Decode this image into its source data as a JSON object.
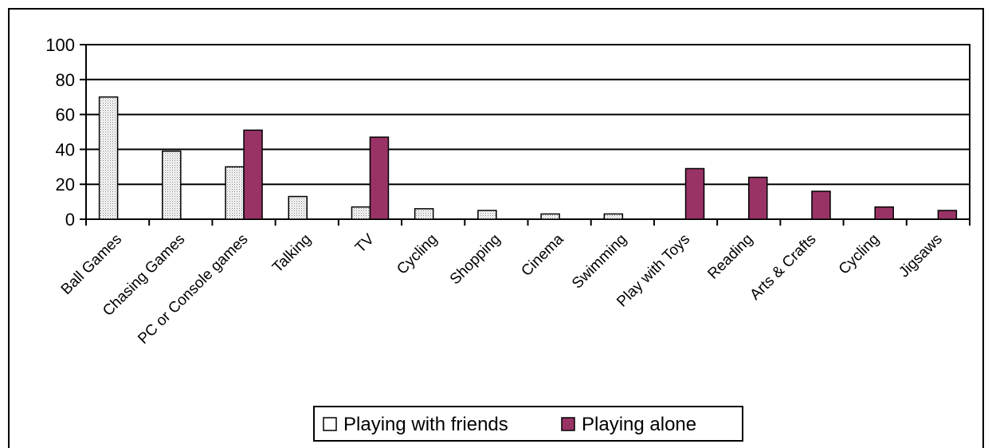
{
  "chart_data": {
    "type": "bar",
    "categories": [
      "Ball Games",
      "Chasing Games",
      "PC or Console games",
      "Talking",
      "TV",
      "Cycling",
      "Shopping",
      "Cinema",
      "Swimming",
      "Play with Toys",
      "Reading",
      "Arts & Crafts",
      "Cycling",
      "Jigsaws"
    ],
    "series": [
      {
        "name": "Playing with friends",
        "color": "#ffffff",
        "pattern": "dotted",
        "values": [
          70,
          39,
          30,
          13,
          7,
          6,
          5,
          3,
          3,
          0,
          0,
          0,
          0,
          0
        ]
      },
      {
        "name": "Playing alone",
        "color": "#993366",
        "values": [
          0,
          0,
          51,
          0,
          47,
          0,
          0,
          0,
          0,
          29,
          24,
          16,
          7,
          5
        ]
      }
    ],
    "ylim": [
      0,
      100
    ],
    "yticks": [
      0,
      20,
      40,
      60,
      80,
      100
    ],
    "grid": true,
    "legend_position": "bottom"
  }
}
